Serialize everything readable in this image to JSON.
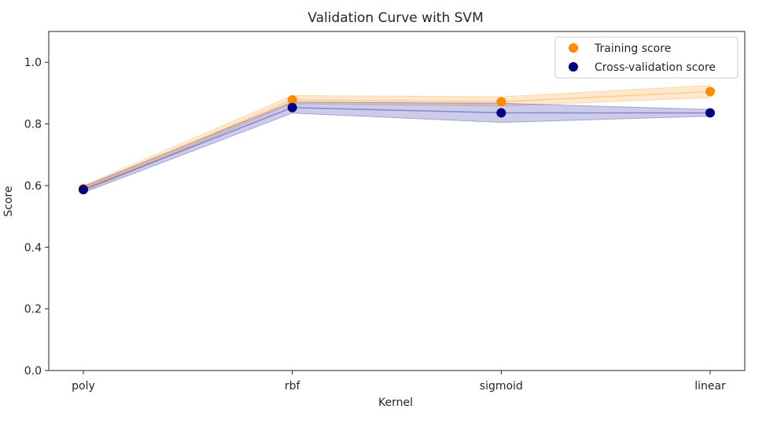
{
  "chart_data": {
    "type": "scatter",
    "title": "Validation Curve with SVM",
    "xlabel": "Kernel",
    "ylabel": "Score",
    "categories": [
      "poly",
      "rbf",
      "sigmoid",
      "linear"
    ],
    "ylim": [
      0.0,
      1.1
    ],
    "yticks": [
      0.0,
      0.2,
      0.4,
      0.6,
      0.8,
      1.0
    ],
    "ytick_labels": [
      "0.0",
      "0.2",
      "0.4",
      "0.6",
      "0.8",
      "1.0"
    ],
    "grid": false,
    "legend_position": "top-right",
    "series": [
      {
        "name": "Training score",
        "color": "#ff8c00",
        "band_color": "#ffa83a",
        "values": [
          0.59,
          0.878,
          0.872,
          0.905
        ],
        "lower": [
          0.58,
          0.865,
          0.858,
          0.885
        ],
        "upper": [
          0.6,
          0.892,
          0.888,
          0.925
        ]
      },
      {
        "name": "Cross-validation score",
        "color": "#000080",
        "band_color": "#3333aa",
        "values": [
          0.587,
          0.853,
          0.836,
          0.836
        ],
        "lower": [
          0.577,
          0.835,
          0.805,
          0.825
        ],
        "upper": [
          0.597,
          0.871,
          0.867,
          0.847
        ]
      }
    ]
  }
}
